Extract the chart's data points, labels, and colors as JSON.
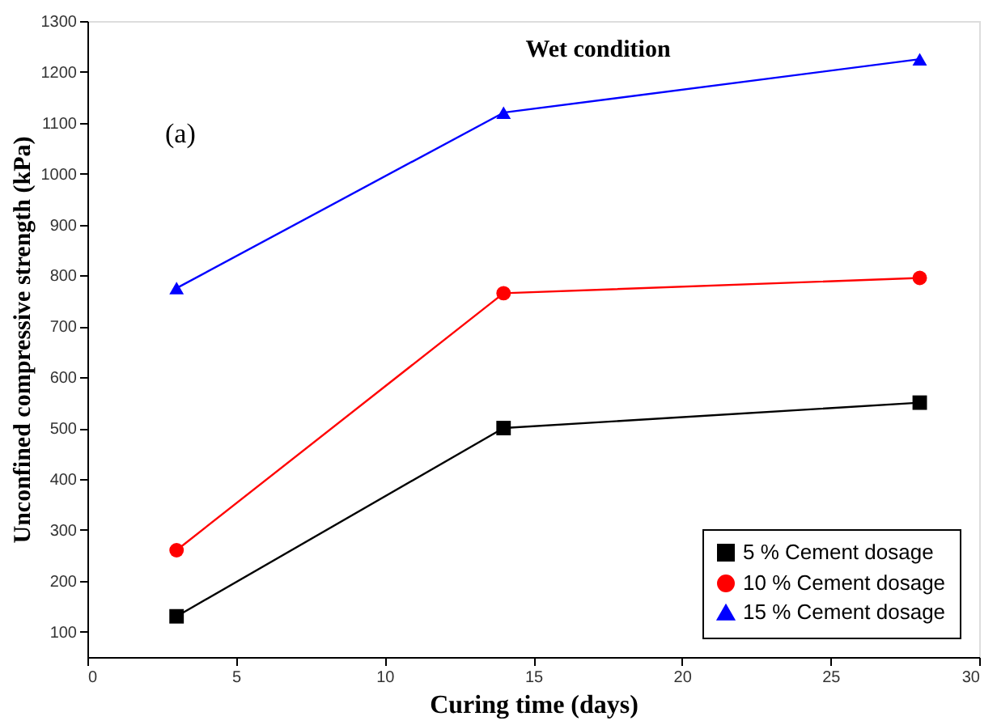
{
  "chart_data": {
    "type": "line",
    "title": "Wet condition",
    "xlabel": "Curing time (days)",
    "ylabel": "Unconfined compressive strength (kPa)",
    "annotations": [
      "(a)"
    ],
    "x": [
      3,
      14,
      28
    ],
    "series": [
      {
        "name": "5 % Cement dosage",
        "color": "#000000",
        "marker": "square",
        "values": [
          130,
          500,
          550
        ]
      },
      {
        "name": "10 % Cement dosage",
        "color": "#ff0000",
        "marker": "circle",
        "values": [
          260,
          765,
          795
        ]
      },
      {
        "name": "15 % Cement dosage",
        "color": "#0000ff",
        "marker": "triangle",
        "values": [
          775,
          1120,
          1225
        ]
      }
    ],
    "xlim": [
      0,
      30
    ],
    "xticks": [
      0,
      5,
      10,
      15,
      20,
      25,
      30
    ],
    "ylim": [
      50,
      1300
    ],
    "yticks": [
      100,
      200,
      300,
      400,
      500,
      600,
      700,
      800,
      900,
      1000,
      1100,
      1200,
      1300
    ],
    "grid": false,
    "legend": "bottom right",
    "line_style": "solid"
  }
}
